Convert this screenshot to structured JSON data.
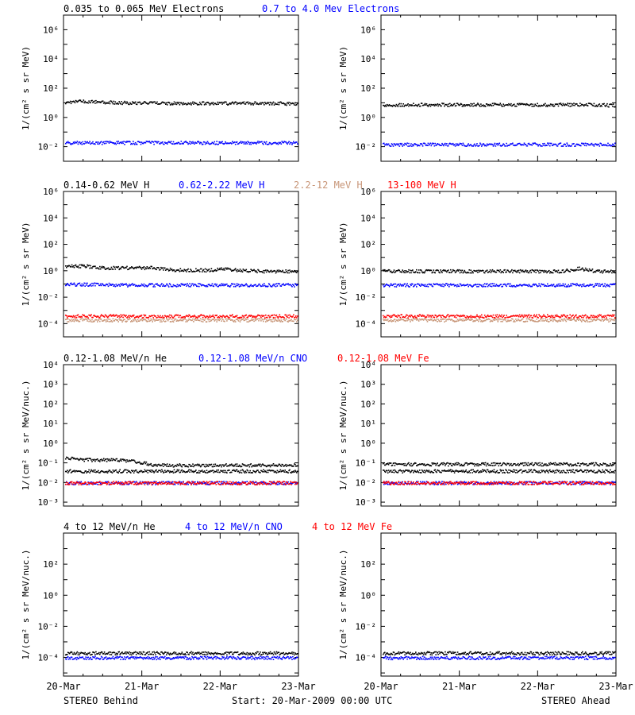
{
  "colors": {
    "black": "#000000",
    "blue": "#0000ff",
    "tan": "#c89678",
    "red": "#ff0000"
  },
  "footer": {
    "left": "STEREO Behind",
    "center": "Start: 20-Mar-2009 00:00 UTC",
    "right": "STEREO Ahead"
  },
  "chart_data": [
    {
      "type": "scatter",
      "row": 0,
      "spacecraft": "STEREO Behind",
      "legend": [
        {
          "text": "0.035 to 0.065 MeV Electrons",
          "color": "black"
        },
        {
          "text": "0.7 to 4.0 Mev Electrons",
          "color": "blue"
        }
      ],
      "ylabel": "1/(cm² s sr MeV)",
      "yscale": "log",
      "ylim_log10": [
        -3,
        7
      ],
      "yticks": [
        "10⁻²",
        "10⁰",
        "10²",
        "10⁴",
        "10⁶"
      ],
      "xticks": [
        "20-Mar",
        "21-Mar",
        "22-Mar",
        "23-Mar"
      ],
      "series": [
        {
          "color": "black",
          "values": [
            12,
            14,
            12,
            11,
            11,
            11,
            10,
            10,
            10,
            10,
            10,
            10,
            10,
            9
          ]
        },
        {
          "color": "blue",
          "values": [
            0.02,
            0.02,
            0.02,
            0.02,
            0.02,
            0.02,
            0.02,
            0.02,
            0.02,
            0.02,
            0.02,
            0.02,
            0.02,
            0.02
          ]
        }
      ]
    },
    {
      "type": "scatter",
      "row": 0,
      "spacecraft": "STEREO Ahead",
      "legend": [],
      "ylabel": "1/(cm² s sr MeV)",
      "yscale": "log",
      "ylim_log10": [
        -3,
        7
      ],
      "yticks": [
        "10⁻²",
        "10⁰",
        "10²",
        "10⁴",
        "10⁶"
      ],
      "xticks": [
        "20-Mar",
        "21-Mar",
        "22-Mar",
        "23-Mar"
      ],
      "series": [
        {
          "color": "black",
          "values": [
            8,
            8,
            8,
            8,
            8,
            8,
            8,
            8,
            8,
            8,
            8,
            8,
            8,
            7
          ]
        },
        {
          "color": "blue",
          "values": [
            0.015,
            0.015,
            0.015,
            0.015,
            0.015,
            0.015,
            0.015,
            0.015,
            0.015,
            0.015,
            0.015,
            0.015,
            0.015,
            0.015
          ]
        }
      ]
    },
    {
      "type": "scatter",
      "row": 1,
      "spacecraft": "STEREO Behind",
      "legend": [
        {
          "text": "0.14-0.62 MeV H",
          "color": "black"
        },
        {
          "text": "0.62-2.22 MeV H",
          "color": "blue"
        },
        {
          "text": "2.2-12 MeV H",
          "color": "tan"
        },
        {
          "text": "13-100 MeV H",
          "color": "red"
        }
      ],
      "ylabel": "1/(cm² s sr MeV)",
      "yscale": "log",
      "ylim_log10": [
        -5,
        6
      ],
      "yticks": [
        "10⁻⁴",
        "10⁻²",
        "10⁰",
        "10²",
        "10⁴",
        "10⁶"
      ],
      "xticks": [
        "20-Mar",
        "21-Mar",
        "22-Mar",
        "23-Mar"
      ],
      "series": [
        {
          "color": "black",
          "values": [
            2.5,
            2.5,
            1.8,
            1.8,
            1.8,
            1.8,
            1.3,
            1.2,
            1.2,
            1.5,
            1.1,
            1.0,
            1.0,
            1.0
          ]
        },
        {
          "color": "blue",
          "values": [
            0.1,
            0.1,
            0.1,
            0.09,
            0.09,
            0.09,
            0.09,
            0.09,
            0.09,
            0.09,
            0.09,
            0.09,
            0.09,
            0.09
          ]
        },
        {
          "color": "tan",
          "values": [
            0.0002,
            0.0002,
            0.0002,
            0.0002,
            0.0002,
            0.0002,
            0.0002,
            0.0002,
            0.0002,
            0.0002,
            0.0002,
            0.0002,
            0.0002,
            0.0002
          ]
        },
        {
          "color": "red",
          "values": [
            0.0004,
            0.0004,
            0.0004,
            0.0004,
            0.0004,
            0.0004,
            0.0004,
            0.0004,
            0.0004,
            0.0004,
            0.0004,
            0.0004,
            0.0004,
            0.0004
          ]
        }
      ]
    },
    {
      "type": "scatter",
      "row": 1,
      "spacecraft": "STEREO Ahead",
      "legend": [],
      "ylabel": "1/(cm² s sr MeV)",
      "yscale": "log",
      "ylim_log10": [
        -5,
        6
      ],
      "yticks": [
        "10⁻⁴",
        "10⁻²",
        "10⁰",
        "10²",
        "10⁴",
        "10⁶"
      ],
      "xticks": [
        "20-Mar",
        "21-Mar",
        "22-Mar",
        "23-Mar"
      ],
      "series": [
        {
          "color": "black",
          "values": [
            1.0,
            1.0,
            1.0,
            1.0,
            1.0,
            1.0,
            1.0,
            1.0,
            1.0,
            1.0,
            1.0,
            1.6,
            1.0,
            1.0
          ]
        },
        {
          "color": "blue",
          "values": [
            0.09,
            0.09,
            0.09,
            0.09,
            0.09,
            0.09,
            0.09,
            0.09,
            0.09,
            0.09,
            0.09,
            0.09,
            0.09,
            0.09
          ]
        },
        {
          "color": "tan",
          "values": [
            0.0002,
            0.0002,
            0.0002,
            0.0002,
            0.0002,
            0.0002,
            0.0002,
            0.0002,
            0.0002,
            0.0002,
            0.0002,
            0.0002,
            0.0002,
            0.0002
          ]
        },
        {
          "color": "red",
          "values": [
            0.0004,
            0.0004,
            0.0004,
            0.0004,
            0.0004,
            0.0004,
            0.0004,
            0.0004,
            0.0004,
            0.0004,
            0.0004,
            0.0004,
            0.0004,
            0.0004
          ]
        }
      ]
    },
    {
      "type": "scatter",
      "row": 2,
      "spacecraft": "STEREO Behind",
      "legend": [
        {
          "text": "0.12-1.08 MeV/n He",
          "color": "black"
        },
        {
          "text": "0.12-1.08 MeV/n CNO",
          "color": "blue"
        },
        {
          "text": "0.12-1.08 MeV Fe",
          "color": "red"
        }
      ],
      "ylabel": "1/(cm² s sr MeV/nuc.)",
      "yscale": "log",
      "ylim_log10": [
        -3.2,
        4
      ],
      "yticks": [
        "10⁻³",
        "10⁻²",
        "10⁻¹",
        "10⁰",
        "10¹",
        "10²",
        "10³",
        "10⁴"
      ],
      "xticks": [
        "20-Mar",
        "21-Mar",
        "22-Mar",
        "23-Mar"
      ],
      "series": [
        {
          "color": "black",
          "values": [
            0.2,
            0.15,
            0.15,
            0.15,
            0.12,
            0.08,
            0.08,
            0.08,
            0.08,
            0.08,
            0.08,
            0.08,
            0.08,
            0.08
          ]
        },
        {
          "color": "black",
          "values": [
            0.04,
            0.04,
            0.04,
            0.04,
            0.04,
            0.04,
            0.04,
            0.04,
            0.04,
            0.04,
            0.04,
            0.04,
            0.04,
            0.04
          ]
        },
        {
          "color": "blue",
          "values": [
            0.01,
            0.01,
            0.01,
            0.01,
            0.01,
            0.01,
            0.01,
            0.01,
            0.01,
            0.01,
            0.01,
            0.01,
            0.01,
            0.01
          ]
        },
        {
          "color": "red",
          "values": [
            0.01,
            0.01,
            0.01,
            0.01,
            0.01,
            0.01,
            0.01,
            0.01,
            0.01,
            0.01,
            0.01,
            0.01,
            0.01,
            0.01
          ]
        }
      ]
    },
    {
      "type": "scatter",
      "row": 2,
      "spacecraft": "STEREO Ahead",
      "legend": [],
      "ylabel": "1/(cm² s sr MeV/nuc.)",
      "yscale": "log",
      "ylim_log10": [
        -3.2,
        4
      ],
      "yticks": [
        "10⁻³",
        "10⁻²",
        "10⁻¹",
        "10⁰",
        "10¹",
        "10²",
        "10³",
        "10⁴"
      ],
      "xticks": [
        "20-Mar",
        "21-Mar",
        "22-Mar",
        "23-Mar"
      ],
      "series": [
        {
          "color": "black",
          "values": [
            0.09,
            0.09,
            0.09,
            0.09,
            0.09,
            0.09,
            0.09,
            0.09,
            0.09,
            0.09,
            0.09,
            0.09,
            0.09,
            0.09
          ]
        },
        {
          "color": "black",
          "values": [
            0.04,
            0.04,
            0.04,
            0.04,
            0.04,
            0.04,
            0.04,
            0.04,
            0.04,
            0.04,
            0.04,
            0.04,
            0.04,
            0.04
          ]
        },
        {
          "color": "blue",
          "values": [
            0.01,
            0.01,
            0.01,
            0.01,
            0.01,
            0.01,
            0.01,
            0.01,
            0.01,
            0.01,
            0.01,
            0.01,
            0.01,
            0.01
          ]
        },
        {
          "color": "red",
          "values": [
            0.01,
            0.01,
            0.01,
            0.01,
            0.01,
            0.01,
            0.01,
            0.01,
            0.01,
            0.01,
            0.01,
            0.01,
            0.01,
            0.01
          ]
        }
      ]
    },
    {
      "type": "scatter",
      "row": 3,
      "spacecraft": "STEREO Behind",
      "legend": [
        {
          "text": "4 to 12 MeV/n He",
          "color": "black"
        },
        {
          "text": "4 to 12 MeV/n CNO",
          "color": "blue"
        },
        {
          "text": "4 to 12 MeV Fe",
          "color": "red"
        }
      ],
      "ylabel": "1/(cm² s sr MeV/nuc.)",
      "yscale": "log",
      "ylim_log10": [
        -5.2,
        4
      ],
      "yticks": [
        "10⁻⁴",
        "10⁻²",
        "10⁰",
        "10²"
      ],
      "xticks": [
        "20-Mar",
        "21-Mar",
        "22-Mar",
        "23-Mar"
      ],
      "series": [
        {
          "color": "black",
          "values": [
            0.0002,
            0.0002,
            0.0002,
            0.0002,
            0.0002,
            0.0002,
            0.0002,
            0.0002,
            0.0002,
            0.0002,
            0.0002,
            0.0002,
            0.0002,
            0.0002
          ]
        },
        {
          "color": "blue",
          "values": [
            0.0001,
            0.0001,
            0.0001,
            0.0001,
            0.0001,
            0.0001,
            0.0001,
            0.0001,
            0.0001,
            0.0001,
            0.0001,
            0.0001,
            0.0001,
            0.0001
          ]
        }
      ]
    },
    {
      "type": "scatter",
      "row": 3,
      "spacecraft": "STEREO Ahead",
      "legend": [],
      "ylabel": "1/(cm² s sr MeV/nuc.)",
      "yscale": "log",
      "ylim_log10": [
        -5.2,
        4
      ],
      "yticks": [
        "10⁻⁴",
        "10⁻²",
        "10⁰",
        "10²"
      ],
      "xticks": [
        "20-Mar",
        "21-Mar",
        "22-Mar",
        "23-Mar"
      ],
      "series": [
        {
          "color": "black",
          "values": [
            0.0002,
            0.0002,
            0.0002,
            0.0002,
            0.0002,
            0.0002,
            0.0002,
            0.0002,
            0.0002,
            0.0002,
            0.0002,
            0.0002,
            0.0002,
            0.0002
          ]
        },
        {
          "color": "blue",
          "values": [
            0.0001,
            0.0001,
            0.0001,
            0.0001,
            0.0001,
            0.0001,
            0.0001,
            0.0001,
            0.0001,
            0.0001,
            0.0001,
            0.0001,
            0.0001,
            0.0001
          ]
        }
      ]
    }
  ]
}
